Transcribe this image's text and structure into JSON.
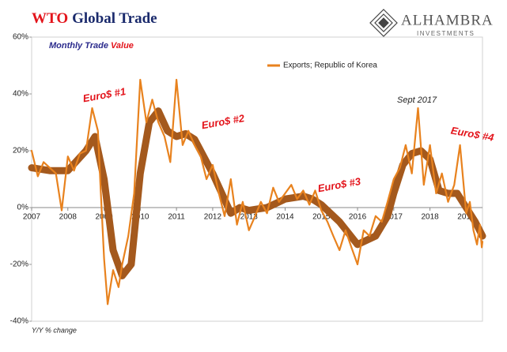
{
  "chart_data": {
    "type": "line",
    "title_parts": [
      "WTO",
      "Global Trade"
    ],
    "subtitle_parts": [
      "Monthly Trade",
      "Value"
    ],
    "logo": [
      "ALHAMBRA",
      "INVESTMENTS"
    ],
    "y_label": "Y/Y % change",
    "annotations": [
      "Euro$ #1",
      "Euro$ #2",
      "Euro$ #3",
      "Euro$ #4",
      "Sept 2017"
    ],
    "xlim": [
      2007,
      2019.45
    ],
    "xticks": [
      2007,
      2008,
      2009,
      2010,
      2011,
      2012,
      2013,
      2014,
      2015,
      2016,
      2017,
      2018,
      2019
    ],
    "ylim": [
      -40,
      60
    ],
    "yticks": [
      {
        "value": 60,
        "label": "60%"
      },
      {
        "value": 40,
        "label": "40%"
      },
      {
        "value": 20,
        "label": "20%"
      },
      {
        "value": 0,
        "label": "0%"
      },
      {
        "value": -20,
        "label": "-20%"
      },
      {
        "value": -40,
        "label": "-40%"
      }
    ],
    "series": [
      {
        "name": "Exports; Republic of Korea",
        "color": "#e8821e",
        "x": [
          2007.0,
          2007.17,
          2007.33,
          2007.5,
          2007.67,
          2007.83,
          2008.0,
          2008.17,
          2008.33,
          2008.5,
          2008.67,
          2008.83,
          2008.9,
          2009.0,
          2009.1,
          2009.25,
          2009.4,
          2009.5,
          2009.67,
          2009.83,
          2010.0,
          2010.17,
          2010.33,
          2010.5,
          2010.67,
          2010.83,
          2011.0,
          2011.17,
          2011.33,
          2011.5,
          2011.67,
          2011.83,
          2012.0,
          2012.17,
          2012.33,
          2012.5,
          2012.67,
          2012.83,
          2013.0,
          2013.17,
          2013.33,
          2013.5,
          2013.67,
          2013.83,
          2014.0,
          2014.17,
          2014.33,
          2014.5,
          2014.67,
          2014.83,
          2015.0,
          2015.17,
          2015.33,
          2015.5,
          2015.67,
          2015.83,
          2016.0,
          2016.17,
          2016.33,
          2016.5,
          2016.67,
          2016.83,
          2017.0,
          2017.17,
          2017.33,
          2017.5,
          2017.67,
          2017.83,
          2018.0,
          2018.17,
          2018.33,
          2018.5,
          2018.67,
          2018.83,
          2019.0,
          2019.1,
          2019.2,
          2019.3,
          2019.38,
          2019.43,
          2019.45
        ],
        "values": [
          20,
          11,
          16,
          14,
          12,
          -1,
          18,
          13,
          19,
          20,
          35,
          27,
          8,
          -18,
          -34,
          -22,
          -28,
          -20,
          -10,
          5,
          45,
          30,
          38,
          30,
          25,
          16,
          45,
          22,
          27,
          22,
          18,
          10,
          15,
          5,
          -3,
          10,
          -6,
          2,
          -8,
          -3,
          2,
          -2,
          7,
          2,
          5,
          8,
          3,
          6,
          1,
          6,
          -1,
          -5,
          -10,
          -15,
          -8,
          -14,
          -20,
          -8,
          -10,
          -3,
          -5,
          2,
          10,
          14,
          22,
          12,
          35,
          8,
          22,
          5,
          12,
          2,
          8,
          22,
          -2,
          2,
          -8,
          -13,
          -6,
          -14,
          -12
        ]
      },
      {
        "color": "#a4591d",
        "x": [
          2007.0,
          2007.5,
          2008.0,
          2008.5,
          2008.75,
          2009.0,
          2009.25,
          2009.5,
          2009.75,
          2010.0,
          2010.25,
          2010.5,
          2010.75,
          2011.0,
          2011.25,
          2011.5,
          2011.75,
          2012.0,
          2012.25,
          2012.5,
          2012.75,
          2013.0,
          2013.5,
          2014.0,
          2014.5,
          2014.75,
          2015.0,
          2015.5,
          2016.0,
          2016.5,
          2016.83,
          2017.0,
          2017.25,
          2017.5,
          2017.75,
          2018.0,
          2018.25,
          2018.5,
          2018.75,
          2019.0,
          2019.25,
          2019.45
        ],
        "values": [
          14,
          13,
          13,
          20,
          25,
          10,
          -15,
          -24,
          -20,
          12,
          30,
          34,
          27,
          25,
          26,
          24,
          18,
          12,
          5,
          -2,
          0,
          -1,
          0,
          3,
          4,
          3,
          1,
          -5,
          -13,
          -10,
          -3,
          5,
          15,
          19,
          20,
          17,
          6,
          5,
          5,
          0,
          -5,
          -10
        ]
      }
    ]
  }
}
